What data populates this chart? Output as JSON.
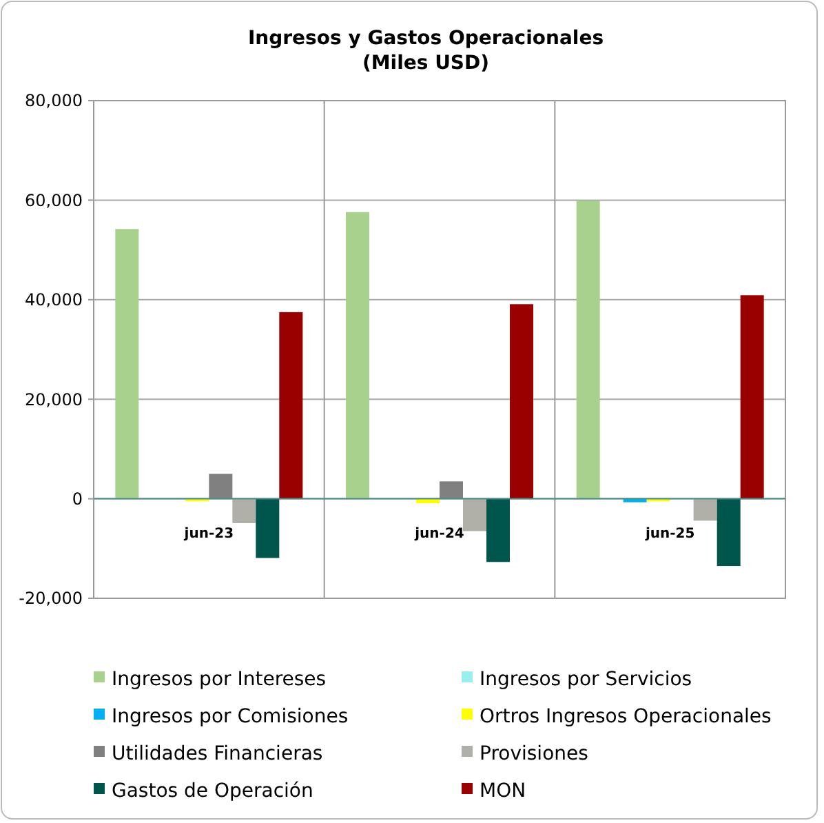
{
  "chart_data": {
    "type": "bar",
    "title": "Ingresos y Gastos Operacionales",
    "subtitle": "(Miles USD)",
    "categories": [
      "jun-23",
      "jun-24",
      "jun-25"
    ],
    "series": [
      {
        "name": "Ingresos por Intereses",
        "color": "#a9d18e",
        "values": [
          54200,
          57600,
          59900
        ]
      },
      {
        "name": "Ingresos por Servicios",
        "color": "#99eeee",
        "values": [
          0,
          null,
          0
        ]
      },
      {
        "name": "Ingresos por Comisiones",
        "color": "#00b0f0",
        "values": [
          0,
          null,
          -700
        ]
      },
      {
        "name": "Ortros Ingresos Operacionales",
        "color": "#ffff00",
        "values": [
          -500,
          -900,
          -500
        ]
      },
      {
        "name": "Utilidades Financieras",
        "color": "#808080",
        "values": [
          5000,
          3500,
          0
        ]
      },
      {
        "name": "Provisiones",
        "color": "#b0b0a8",
        "values": [
          -4900,
          -6500,
          -4400
        ]
      },
      {
        "name": "Gastos de Operación",
        "color": "#00564c",
        "values": [
          -11900,
          -12700,
          -13500
        ]
      },
      {
        "name": "MON",
        "color": "#990000",
        "values": [
          37500,
          39100,
          40900
        ]
      }
    ],
    "ylim": [
      -20000,
      80000
    ],
    "yticks": [
      {
        "value": -20000,
        "label": "-20,000"
      },
      0,
      {
        "value": 20000,
        "label": "20,000"
      },
      {
        "value": 40000,
        "label": "40,000"
      },
      {
        "value": 60000,
        "label": "60,000"
      },
      {
        "value": 80000,
        "label": "80,000"
      }
    ],
    "grid": true,
    "legend": "bottom"
  }
}
